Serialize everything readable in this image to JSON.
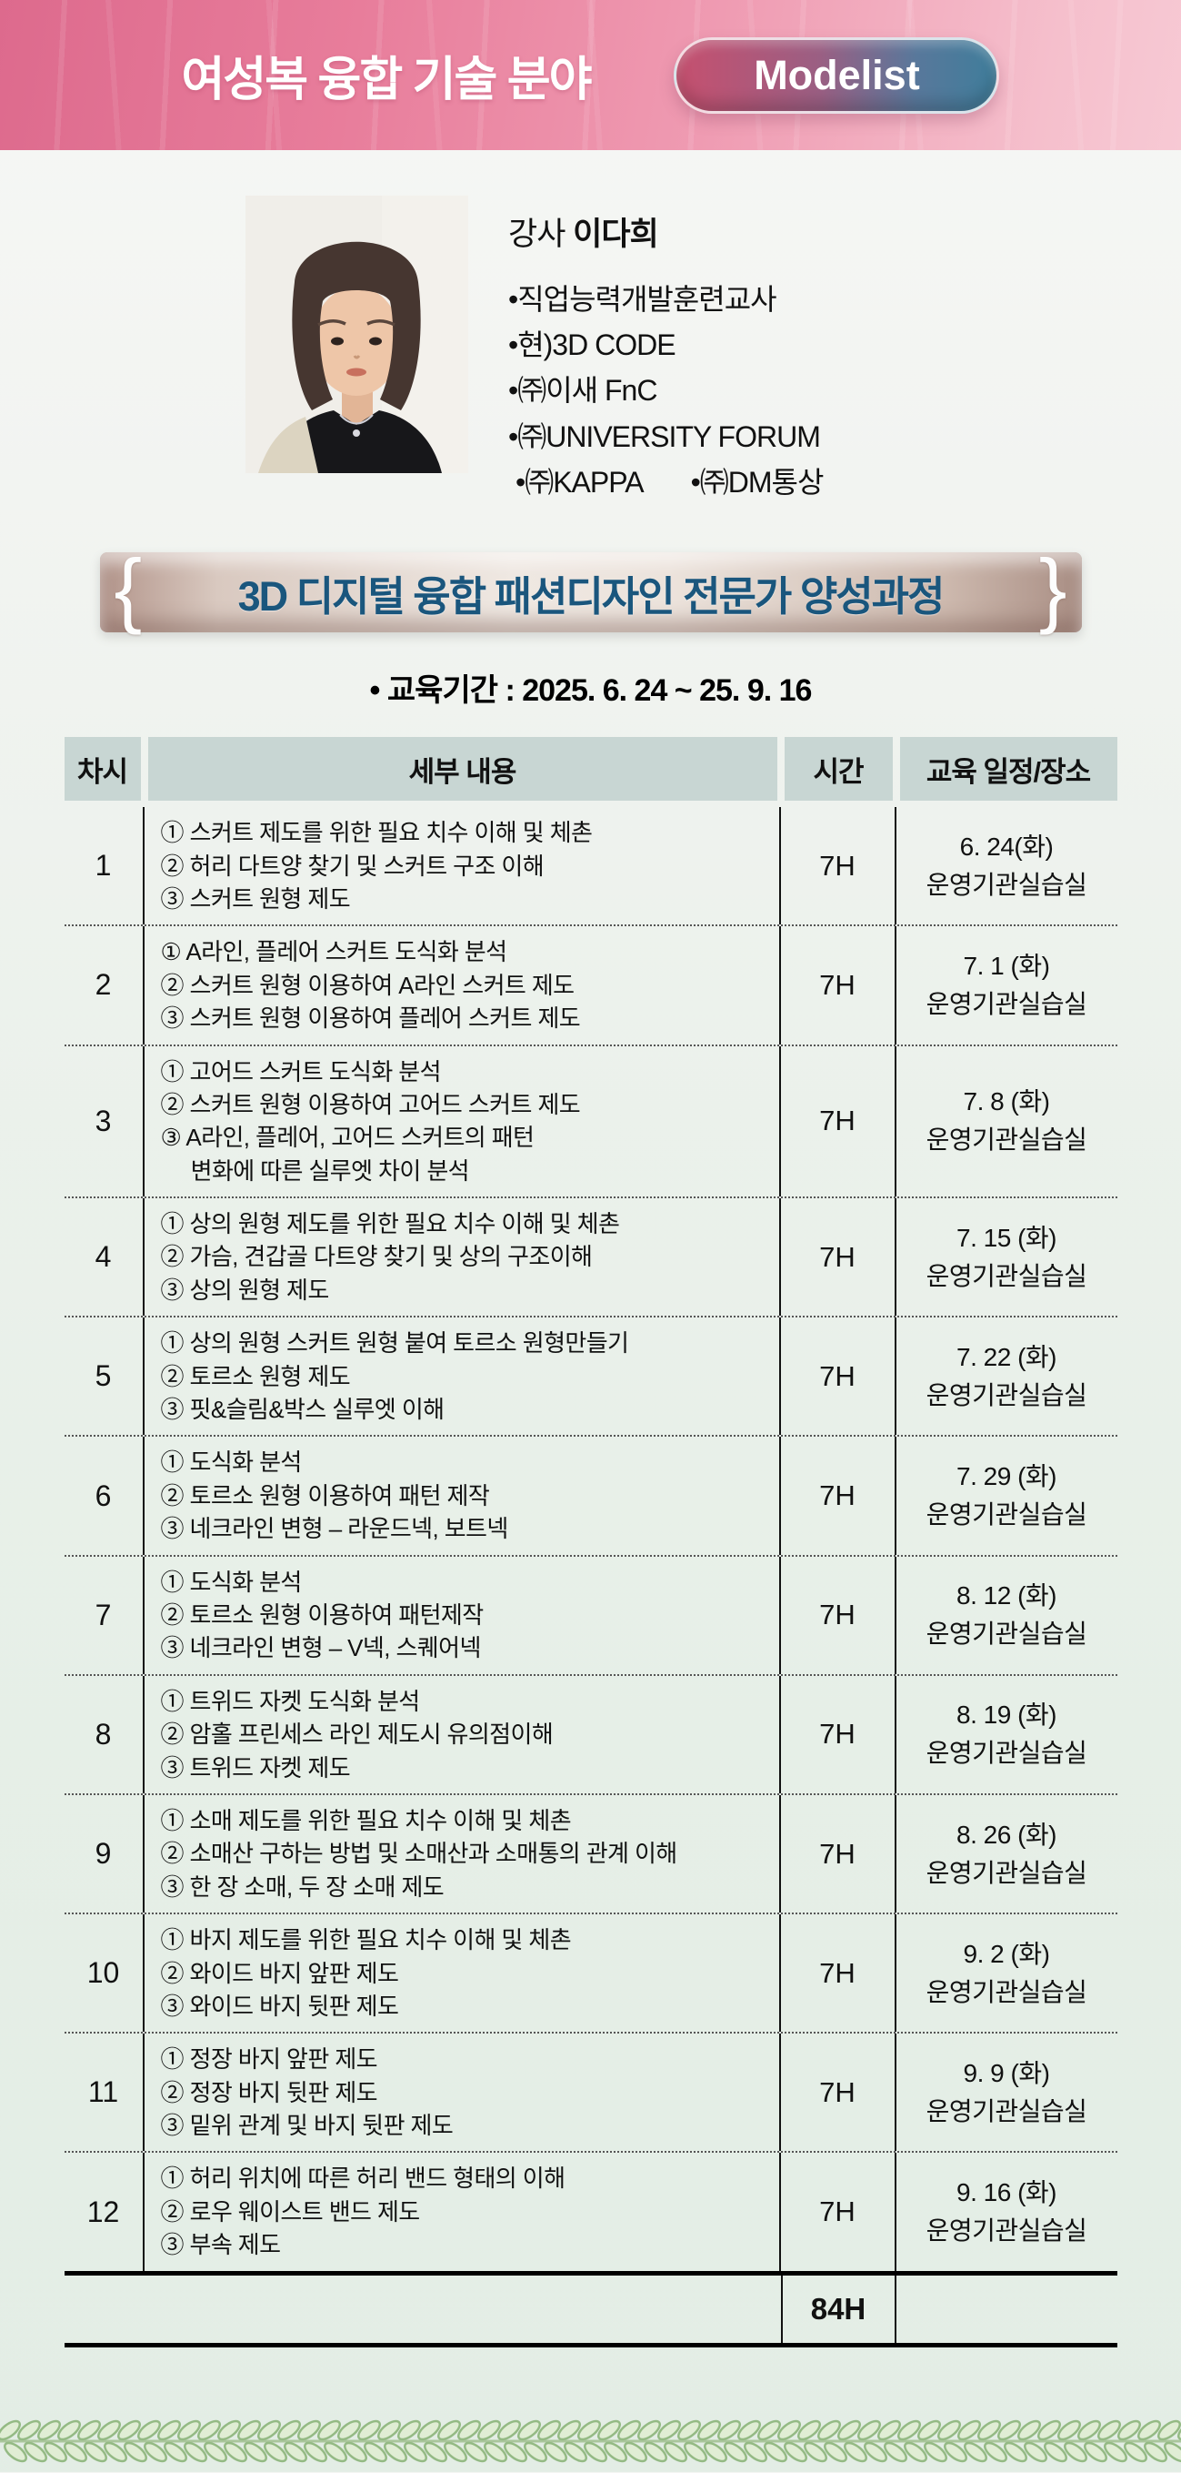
{
  "header": {
    "title": "여성복 융합 기술 분야",
    "badge": "Modelist"
  },
  "instructor": {
    "role_label": "강사",
    "name": "이다희",
    "credentials": [
      "•직업능력개발훈련교사",
      "•현)3D CODE",
      "•㈜이새 FnC",
      "•㈜UNIVERSITY FORUM"
    ],
    "credentials_last_row": [
      "•㈜KAPPA",
      "•㈜DM통상"
    ]
  },
  "course": {
    "banner_title": "3D 디지털 융합 패션디자인 전문가 양성과정",
    "ornament_left": "{",
    "ornament_right": "}",
    "period": "• 교육기간 : 2025. 6. 24 ~ 25. 9. 16"
  },
  "table": {
    "headers": [
      "차시",
      "세부 내용",
      "시간",
      "교육 일정/장소"
    ],
    "rows": [
      {
        "no": "1",
        "details": [
          "① 스커트 제도를 위한 필요 치수 이해 및 체촌",
          "② 허리 다트양 찾기 및 스커트 구조 이해",
          "③ 스커트 원형 제도"
        ],
        "hours": "7H",
        "schedule": [
          "6. 24(화)",
          "운영기관실습실"
        ]
      },
      {
        "no": "2",
        "details": [
          "① A라인, 플레어 스커트 도식화 분석",
          "② 스커트 원형 이용하여 A라인 스커트 제도",
          "③ 스커트 원형 이용하여 플레어 스커트 제도"
        ],
        "hours": "7H",
        "schedule": [
          "7. 1 (화)",
          "운영기관실습실"
        ]
      },
      {
        "no": "3",
        "details": [
          "① 고어드 스커트 도식화 분석",
          "② 스커트 원형 이용하여 고어드 스커트 제도",
          "③ A라인, 플레어, 고어드 스커트의 패턴",
          "     변화에 따른 실루엣 차이 분석"
        ],
        "hours": "7H",
        "schedule": [
          "7. 8 (화)",
          "운영기관실습실"
        ]
      },
      {
        "no": "4",
        "details": [
          "① 상의 원형 제도를 위한 필요 치수 이해 및 체촌",
          "② 가슴, 견갑골 다트양 찾기 및 상의 구조이해",
          "③ 상의 원형 제도"
        ],
        "hours": "7H",
        "schedule": [
          "7. 15 (화)",
          "운영기관실습실"
        ]
      },
      {
        "no": "5",
        "details": [
          "① 상의 원형 스커트 원형 붙여 토르소 원형만들기",
          "② 토르소 원형 제도",
          "③ 핏&슬림&박스 실루엣 이해"
        ],
        "hours": "7H",
        "schedule": [
          "7. 22 (화)",
          "운영기관실습실"
        ]
      },
      {
        "no": "6",
        "details": [
          "① 도식화 분석",
          "② 토르소 원형 이용하여 패턴 제작",
          "③ 네크라인 변형 – 라운드넥, 보트넥"
        ],
        "hours": "7H",
        "schedule": [
          "7. 29 (화)",
          "운영기관실습실"
        ]
      },
      {
        "no": "7",
        "details": [
          "① 도식화 분석",
          "② 토르소 원형 이용하여 패턴제작",
          "③ 네크라인 변형 – V넥, 스퀘어넥"
        ],
        "hours": "7H",
        "schedule": [
          "8. 12 (화)",
          "운영기관실습실"
        ]
      },
      {
        "no": "8",
        "details": [
          "① 트위드 자켓 도식화 분석",
          "② 암홀 프린세스 라인 제도시 유의점이해",
          "③ 트위드 자켓 제도"
        ],
        "hours": "7H",
        "schedule": [
          "8. 19 (화)",
          "운영기관실습실"
        ]
      },
      {
        "no": "9",
        "details": [
          "① 소매 제도를 위한 필요 치수 이해 및 체촌",
          "② 소매산 구하는 방법 및 소매산과 소매통의 관계 이해",
          "③ 한 장 소매, 두 장 소매 제도"
        ],
        "hours": "7H",
        "schedule": [
          "8. 26 (화)",
          "운영기관실습실"
        ]
      },
      {
        "no": "10",
        "details": [
          "① 바지 제도를 위한 필요 치수 이해 및 체촌",
          "② 와이드 바지 앞판 제도",
          "③ 와이드 바지 뒷판 제도"
        ],
        "hours": "7H",
        "schedule": [
          "9. 2 (화)",
          "운영기관실습실"
        ]
      },
      {
        "no": "11",
        "details": [
          "① 정장 바지 앞판 제도",
          "② 정장 바지 뒷판 제도",
          "③ 밑위 관계 및 바지 뒷판 제도"
        ],
        "hours": "7H",
        "schedule": [
          "9. 9 (화)",
          "운영기관실습실"
        ]
      },
      {
        "no": "12",
        "details": [
          "① 허리 위치에 따른 허리 밴드 형태의 이해",
          "② 로우 웨이스트 밴드 제도",
          "③ 부속 제도"
        ],
        "hours": "7H",
        "schedule": [
          "9. 16 (화)",
          "운영기관실습실"
        ]
      }
    ],
    "total_hours": "84H"
  },
  "colors": {
    "header_pink_left": "#dd6a8d",
    "header_pink_right": "#f7c9d4",
    "badge_gradient_left": "#c6506f",
    "badge_gradient_right": "#3f7d9b",
    "banner_tan_edge": "#b2948a",
    "banner_tan_center": "#efe8e2",
    "banner_text": "#1a567d",
    "table_header_bg": "#c8d6d3",
    "page_bg_top": "#f6f7f5",
    "page_bg_bottom": "#e3ede5",
    "vine_green": "#94ba84"
  }
}
